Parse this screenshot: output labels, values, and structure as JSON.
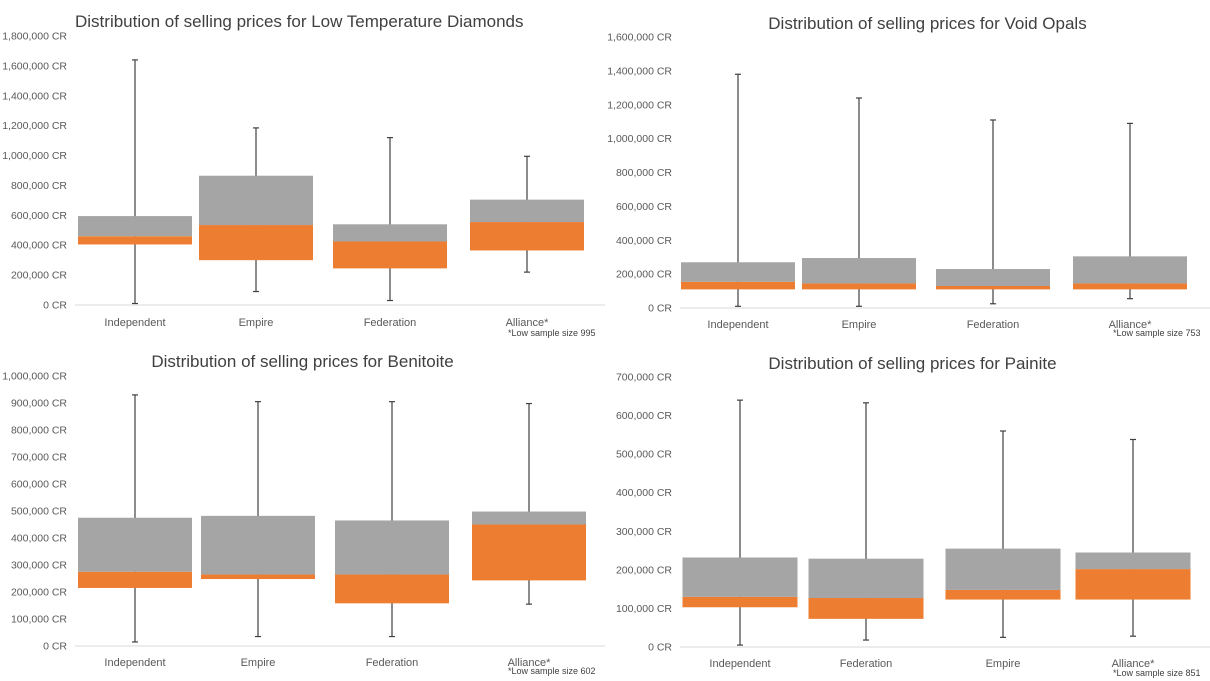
{
  "chart_data": [
    {
      "type": "box",
      "title": "Distribution of selling prices for Low Temperature Diamonds",
      "categories": [
        "Independent",
        "Empire",
        "Federation",
        "Alliance*"
      ],
      "footnote": "*Low sample size 995",
      "yticks": [
        "0 CR",
        "200,000 CR",
        "400,000 CR",
        "600,000 CR",
        "800,000 CR",
        "1,000,000 CR",
        "1,200,000 CR",
        "1,400,000 CR",
        "1,600,000 CR",
        "1,800,000 CR"
      ],
      "ylim": [
        0,
        1800000
      ],
      "series": [
        {
          "name": "Independent",
          "min": 10000,
          "q1": 405000,
          "median": 460000,
          "q3": 595000,
          "max": 1640000
        },
        {
          "name": "Empire",
          "min": 90000,
          "q1": 300000,
          "median": 535000,
          "q3": 865000,
          "max": 1185000
        },
        {
          "name": "Federation",
          "min": 30000,
          "q1": 245000,
          "median": 425000,
          "q3": 540000,
          "max": 1120000
        },
        {
          "name": "Alliance*",
          "min": 220000,
          "q1": 365000,
          "median": 555000,
          "q3": 705000,
          "max": 995000
        }
      ],
      "colors": {
        "lower": "#ED7D31",
        "upper": "#A5A5A5",
        "whisker": "#404040"
      }
    },
    {
      "type": "box",
      "title": "Distribution of selling prices for Void Opals",
      "categories": [
        "Independent",
        "Empire",
        "Federation",
        "Alliance*"
      ],
      "footnote": "*Low sample size 753",
      "yticks": [
        "0 CR",
        "200,000 CR",
        "400,000 CR",
        "600,000 CR",
        "800,000 CR",
        "1,000,000 CR",
        "1,200,000 CR",
        "1,400,000 CR",
        "1,600,000 CR"
      ],
      "ylim": [
        0,
        1600000
      ],
      "series": [
        {
          "name": "Independent",
          "min": 10000,
          "q1": 110000,
          "median": 155000,
          "q3": 270000,
          "max": 1380000
        },
        {
          "name": "Empire",
          "min": 10000,
          "q1": 110000,
          "median": 145000,
          "q3": 295000,
          "max": 1240000
        },
        {
          "name": "Federation",
          "min": 25000,
          "q1": 110000,
          "median": 130000,
          "q3": 230000,
          "max": 1110000
        },
        {
          "name": "Alliance*",
          "min": 55000,
          "q1": 110000,
          "median": 145000,
          "q3": 305000,
          "max": 1090000
        }
      ],
      "colors": {
        "lower": "#ED7D31",
        "upper": "#A5A5A5",
        "whisker": "#404040"
      }
    },
    {
      "type": "box",
      "title": "Distribution of selling prices for Benitoite",
      "categories": [
        "Independent",
        "Empire",
        "Federation",
        "Alliance*"
      ],
      "footnote": "*Low sample size 602",
      "yticks": [
        "0 CR",
        "100,000 CR",
        "200,000 CR",
        "300,000 CR",
        "400,000 CR",
        "500,000 CR",
        "600,000 CR",
        "700,000 CR",
        "800,000 CR",
        "900,000 CR",
        "1,000,000 CR"
      ],
      "ylim": [
        0,
        1000000
      ],
      "series": [
        {
          "name": "Independent",
          "min": 15000,
          "q1": 215000,
          "median": 275000,
          "q3": 475000,
          "max": 930000
        },
        {
          "name": "Empire",
          "min": 35000,
          "q1": 248000,
          "median": 265000,
          "q3": 482000,
          "max": 905000
        },
        {
          "name": "Federation",
          "min": 35000,
          "q1": 158000,
          "median": 265000,
          "q3": 465000,
          "max": 905000
        },
        {
          "name": "Alliance*",
          "min": 155000,
          "q1": 243000,
          "median": 450000,
          "q3": 498000,
          "max": 898000
        }
      ],
      "colors": {
        "lower": "#ED7D31",
        "upper": "#A5A5A5",
        "whisker": "#404040"
      }
    },
    {
      "type": "box",
      "title": "Distribution of selling prices for Painite",
      "categories": [
        "Independent",
        "Federation",
        "Empire",
        "Alliance*"
      ],
      "footnote": "*Low sample size 851",
      "yticks": [
        "0 CR",
        "100,000 CR",
        "200,000 CR",
        "300,000 CR",
        "400,000 CR",
        "500,000 CR",
        "600,000 CR",
        "700,000 CR"
      ],
      "ylim": [
        0,
        700000
      ],
      "series": [
        {
          "name": "Independent",
          "min": 5000,
          "q1": 103000,
          "median": 130000,
          "q3": 232000,
          "max": 640000
        },
        {
          "name": "Federation",
          "min": 18000,
          "q1": 73000,
          "median": 127000,
          "q3": 229000,
          "max": 633000
        },
        {
          "name": "Empire",
          "min": 25000,
          "q1": 123000,
          "median": 148000,
          "q3": 255000,
          "max": 560000
        },
        {
          "name": "Alliance*",
          "min": 28000,
          "q1": 123000,
          "median": 202000,
          "q3": 245000,
          "max": 538000
        }
      ],
      "colors": {
        "lower": "#ED7D31",
        "upper": "#A5A5A5",
        "whisker": "#404040"
      }
    }
  ]
}
